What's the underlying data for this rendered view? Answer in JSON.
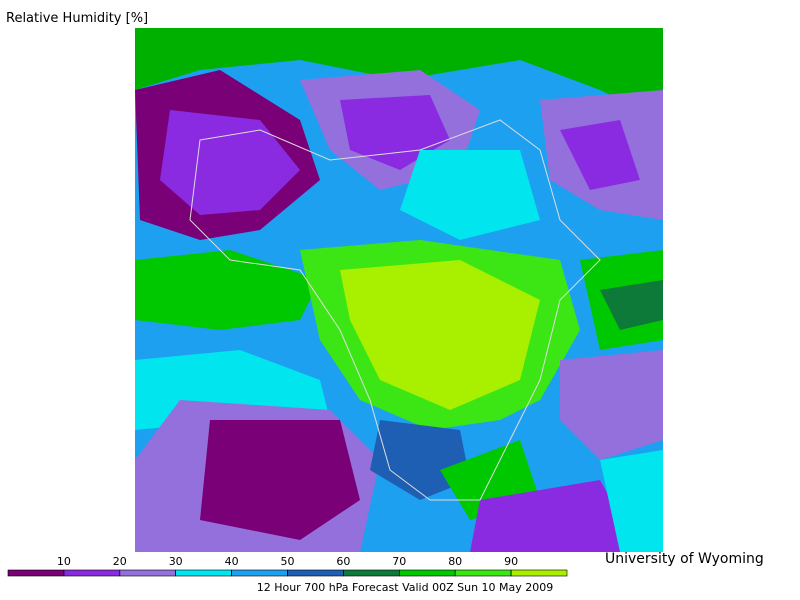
{
  "title": "Relative Humidity [%]",
  "credit": "University of Wyoming",
  "caption": "12 Hour 700 hPa Forecast Valid 00Z Sun 10 May 2009",
  "colorbar": {
    "range": [
      0,
      100
    ],
    "ticks": [
      10,
      20,
      30,
      40,
      50,
      60,
      70,
      80,
      90
    ],
    "colors": [
      "#7a0078",
      "#8a2be2",
      "#9370db",
      "#00e5ee",
      "#1ea0f0",
      "#1e5fb4",
      "#0e7a3a",
      "#00c800",
      "#3ce614",
      "#a8f000"
    ]
  }
}
